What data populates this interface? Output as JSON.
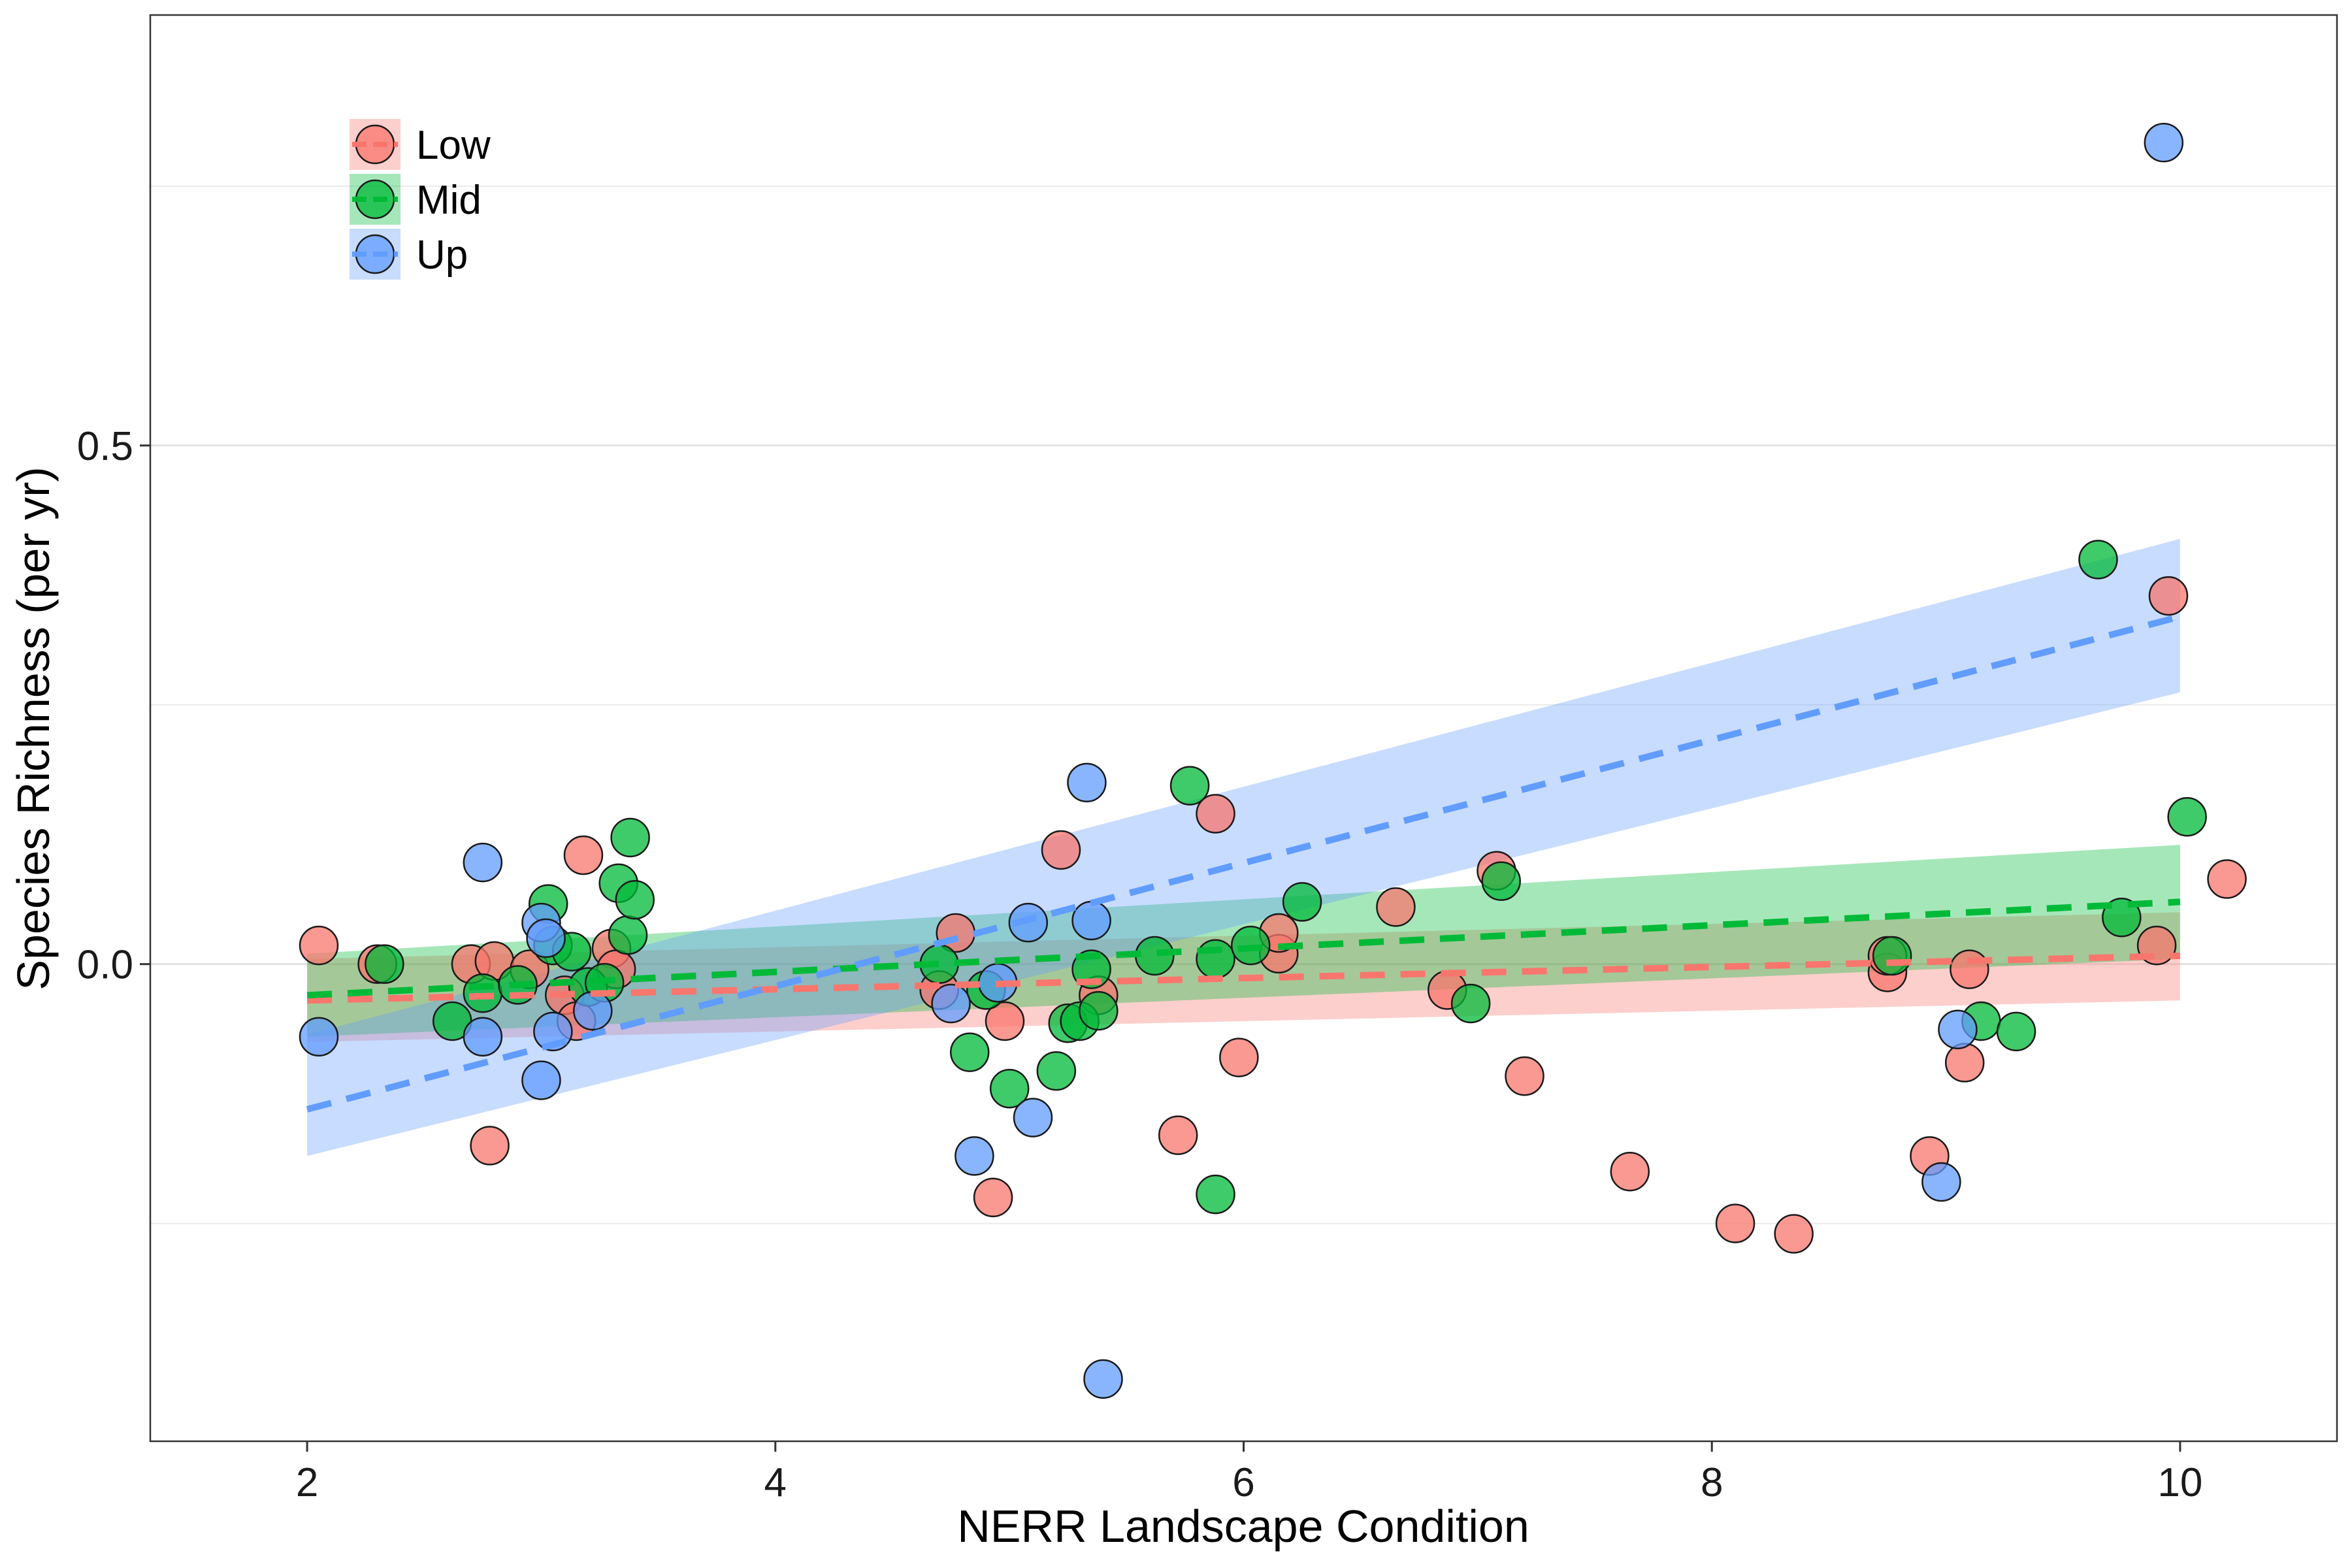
{
  "chart_data": {
    "type": "scatter",
    "title": "",
    "xlabel": "NERR Landscape Condition",
    "ylabel": "Species Richness (per yr)",
    "xlim": [
      1.33,
      10.67
    ],
    "ylim": [
      -0.46,
      0.915
    ],
    "x_ticks": [
      {
        "value": 2,
        "label": "2"
      },
      {
        "value": 4,
        "label": "4"
      },
      {
        "value": 6,
        "label": "6"
      },
      {
        "value": 8,
        "label": "8"
      },
      {
        "value": 10,
        "label": "10"
      }
    ],
    "y_ticks": [
      {
        "value": 0.0,
        "label": "0.0"
      },
      {
        "value": 0.5,
        "label": "0.5"
      }
    ],
    "y_minor_grid": [
      -0.25,
      0.25,
      0.75
    ],
    "grid": true,
    "legend": {
      "position": "top-left"
    },
    "series": [
      {
        "name": "Low",
        "color": "#F8766D",
        "fit": {
          "x": [
            2,
            10
          ],
          "y": [
            -0.035,
            0.008
          ],
          "ci_low": [
            -0.075,
            -0.035
          ],
          "ci_high": [
            0.005,
            0.05
          ]
        },
        "points": [
          {
            "x": 2.05,
            "y": 0.018
          },
          {
            "x": 2.3,
            "y": 0.0
          },
          {
            "x": 2.7,
            "y": 0.0
          },
          {
            "x": 2.8,
            "y": 0.003
          },
          {
            "x": 2.78,
            "y": -0.175
          },
          {
            "x": 2.95,
            "y": -0.005
          },
          {
            "x": 3.1,
            "y": -0.03
          },
          {
            "x": 3.15,
            "y": -0.055
          },
          {
            "x": 3.18,
            "y": 0.105
          },
          {
            "x": 3.3,
            "y": 0.015
          },
          {
            "x": 3.32,
            "y": -0.005
          },
          {
            "x": 4.7,
            "y": -0.025
          },
          {
            "x": 4.77,
            "y": 0.03
          },
          {
            "x": 4.93,
            "y": -0.225
          },
          {
            "x": 4.98,
            "y": -0.055
          },
          {
            "x": 5.22,
            "y": 0.11
          },
          {
            "x": 5.38,
            "y": -0.03
          },
          {
            "x": 5.72,
            "y": -0.165
          },
          {
            "x": 5.88,
            "y": 0.145
          },
          {
            "x": 5.98,
            "y": -0.09
          },
          {
            "x": 6.15,
            "y": 0.01
          },
          {
            "x": 6.15,
            "y": 0.03
          },
          {
            "x": 6.65,
            "y": 0.055
          },
          {
            "x": 6.87,
            "y": -0.025
          },
          {
            "x": 7.08,
            "y": 0.09
          },
          {
            "x": 7.2,
            "y": -0.108
          },
          {
            "x": 7.65,
            "y": -0.2
          },
          {
            "x": 8.1,
            "y": -0.25
          },
          {
            "x": 8.35,
            "y": -0.26
          },
          {
            "x": 8.75,
            "y": -0.008
          },
          {
            "x": 8.75,
            "y": 0.008
          },
          {
            "x": 8.93,
            "y": -0.185
          },
          {
            "x": 9.08,
            "y": -0.095
          },
          {
            "x": 9.1,
            "y": -0.005
          },
          {
            "x": 9.9,
            "y": 0.018
          },
          {
            "x": 9.95,
            "y": 0.355
          },
          {
            "x": 10.2,
            "y": 0.082
          }
        ]
      },
      {
        "name": "Mid",
        "color": "#00BA38",
        "fit": {
          "x": [
            2,
            10
          ],
          "y": [
            -0.03,
            0.06
          ],
          "ci_low": [
            -0.07,
            0.005
          ],
          "ci_high": [
            0.01,
            0.115
          ]
        },
        "points": [
          {
            "x": 2.33,
            "y": 0.0
          },
          {
            "x": 2.62,
            "y": -0.055
          },
          {
            "x": 2.75,
            "y": -0.028
          },
          {
            "x": 2.9,
            "y": -0.02
          },
          {
            "x": 3.03,
            "y": 0.058
          },
          {
            "x": 3.05,
            "y": 0.018
          },
          {
            "x": 3.13,
            "y": 0.012
          },
          {
            "x": 3.2,
            "y": -0.022
          },
          {
            "x": 3.27,
            "y": -0.018
          },
          {
            "x": 3.33,
            "y": 0.078
          },
          {
            "x": 3.37,
            "y": 0.028
          },
          {
            "x": 3.38,
            "y": 0.122
          },
          {
            "x": 3.4,
            "y": 0.062
          },
          {
            "x": 4.7,
            "y": 0.0
          },
          {
            "x": 4.83,
            "y": -0.085
          },
          {
            "x": 4.9,
            "y": -0.025
          },
          {
            "x": 5.0,
            "y": -0.12
          },
          {
            "x": 5.2,
            "y": -0.103
          },
          {
            "x": 5.25,
            "y": -0.057
          },
          {
            "x": 5.3,
            "y": -0.055
          },
          {
            "x": 5.35,
            "y": -0.005
          },
          {
            "x": 5.38,
            "y": -0.045
          },
          {
            "x": 5.62,
            "y": 0.008
          },
          {
            "x": 5.77,
            "y": 0.172
          },
          {
            "x": 5.88,
            "y": 0.005
          },
          {
            "x": 5.88,
            "y": -0.222
          },
          {
            "x": 6.03,
            "y": 0.018
          },
          {
            "x": 6.25,
            "y": 0.06
          },
          {
            "x": 6.97,
            "y": -0.038
          },
          {
            "x": 7.1,
            "y": 0.08
          },
          {
            "x": 8.77,
            "y": 0.008
          },
          {
            "x": 9.15,
            "y": -0.055
          },
          {
            "x": 9.3,
            "y": -0.065
          },
          {
            "x": 9.65,
            "y": 0.39
          },
          {
            "x": 9.75,
            "y": 0.045
          },
          {
            "x": 10.03,
            "y": 0.142
          }
        ]
      },
      {
        "name": "Up",
        "color": "#619CFF",
        "fit": {
          "x": [
            2,
            10
          ],
          "y": [
            -0.14,
            0.335
          ],
          "ci_low": [
            -0.185,
            0.262
          ],
          "ci_high": [
            -0.068,
            0.41
          ]
        },
        "points": [
          {
            "x": 2.05,
            "y": -0.07
          },
          {
            "x": 2.75,
            "y": 0.098
          },
          {
            "x": 2.75,
            "y": -0.07
          },
          {
            "x": 3.0,
            "y": -0.112
          },
          {
            "x": 3.0,
            "y": 0.04
          },
          {
            "x": 3.02,
            "y": 0.025
          },
          {
            "x": 3.05,
            "y": -0.065
          },
          {
            "x": 3.22,
            "y": -0.045
          },
          {
            "x": 4.75,
            "y": -0.038
          },
          {
            "x": 4.85,
            "y": -0.185
          },
          {
            "x": 4.95,
            "y": -0.018
          },
          {
            "x": 5.08,
            "y": 0.04
          },
          {
            "x": 5.1,
            "y": -0.148
          },
          {
            "x": 5.33,
            "y": 0.175
          },
          {
            "x": 5.35,
            "y": 0.042
          },
          {
            "x": 5.4,
            "y": -0.4
          },
          {
            "x": 9.05,
            "y": -0.063
          },
          {
            "x": 8.98,
            "y": -0.21
          },
          {
            "x": 9.93,
            "y": 0.792
          }
        ]
      }
    ]
  }
}
